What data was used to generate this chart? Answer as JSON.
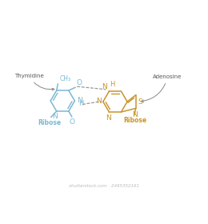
{
  "bg_color": "#ffffff",
  "thymine_color": "#7ab8d4",
  "adenine_color": "#c8952a",
  "bond_color": "#aaaaaa",
  "label_color": "#555555",
  "thymidine_label": "Thymidine",
  "adenosine_label": "Adenosine",
  "ribose_label": "Ribose",
  "ch3_label": "CH₃",
  "watermark": "shutterstock.com · 2495352161",
  "figsize": [
    2.6,
    2.8
  ],
  "dpi": 100,
  "xlim": [
    0,
    13
  ],
  "ylim": [
    0,
    10
  ]
}
